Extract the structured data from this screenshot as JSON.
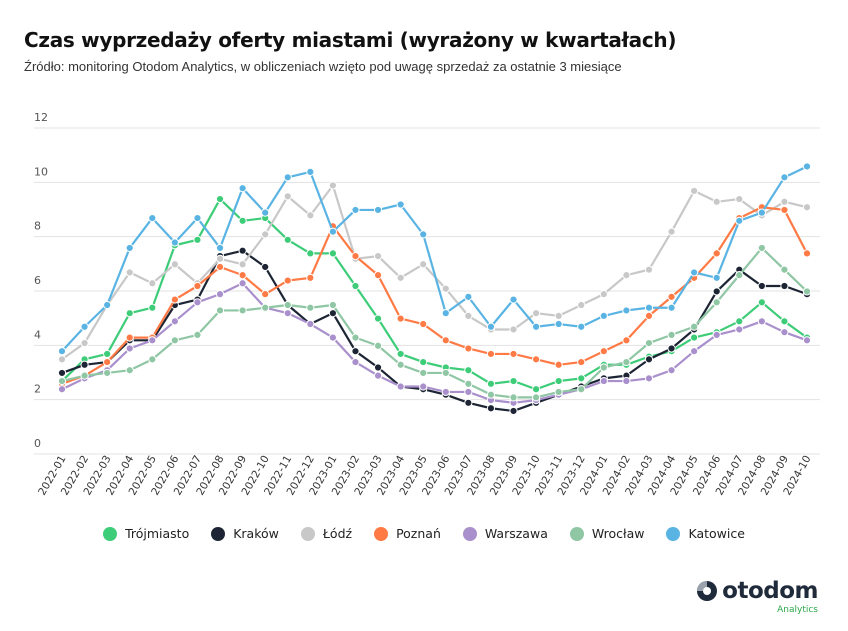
{
  "title": "Czas wyprzedaży oferty miastami (wyrażony w kwartałach)",
  "subtitle": "Źródło: monitoring Otodom Analytics, w obliczeniach wzięto pod uwagę sprzedaż za ostatnie 3 miesiące",
  "logo": {
    "name": "otodom",
    "sub": "Analytics"
  },
  "chart_data": {
    "type": "line",
    "title": "Czas wyprzedaży oferty miastami (wyrażony w kwartałach)",
    "ylim": [
      0,
      12
    ],
    "yticks": [
      0,
      2,
      4,
      6,
      8,
      10,
      12
    ],
    "grid": true,
    "legend": "bottom",
    "x": [
      "2022-01",
      "2022-02",
      "2022-03",
      "2022-04",
      "2022-05",
      "2022-06",
      "2022-07",
      "2022-08",
      "2022-09",
      "2022-10",
      "2022-11",
      "2022-12",
      "2023-01",
      "2023-02",
      "2023-03",
      "2023-04",
      "2023-05",
      "2023-06",
      "2023-07",
      "2023-08",
      "2023-09",
      "2023-10",
      "2023-11",
      "2023-12",
      "2024-01",
      "2024-02",
      "2024-03",
      "2024-04",
      "2024-05",
      "2024-06",
      "2024-07",
      "2024-08",
      "2024-09",
      "2024-10"
    ],
    "series": [
      {
        "name": "Trójmiasto",
        "color": "#3dcc78",
        "values": [
          2.5,
          3.3,
          3.5,
          5.0,
          5.2,
          7.5,
          7.7,
          9.2,
          8.4,
          8.5,
          7.7,
          7.2,
          7.2,
          6.0,
          4.8,
          3.5,
          3.2,
          3.0,
          2.9,
          2.4,
          2.5,
          2.2,
          2.5,
          2.6,
          3.1,
          3.1,
          3.4,
          3.6,
          4.1,
          4.3,
          4.7,
          5.4,
          4.7,
          4.1
        ]
      },
      {
        "name": "Kraków",
        "color": "#1d2535",
        "values": [
          2.8,
          3.1,
          3.2,
          4.0,
          4.0,
          5.3,
          5.5,
          7.1,
          7.3,
          6.7,
          5.3,
          4.6,
          5.0,
          3.6,
          3.0,
          2.3,
          2.2,
          2.0,
          1.7,
          1.5,
          1.4,
          1.7,
          2.0,
          2.3,
          2.6,
          2.7,
          3.3,
          3.7,
          4.4,
          5.8,
          6.6,
          6.0,
          6.0,
          5.7
        ]
      },
      {
        "name": "Łódź",
        "color": "#c8c8c8",
        "values": [
          3.3,
          3.9,
          5.3,
          6.5,
          6.1,
          6.8,
          6.1,
          7.0,
          6.8,
          7.9,
          9.3,
          8.6,
          9.7,
          7.0,
          7.1,
          6.3,
          6.8,
          5.9,
          4.9,
          4.4,
          4.4,
          5.0,
          4.9,
          5.3,
          5.7,
          6.4,
          6.6,
          8.0,
          9.5,
          9.1,
          9.2,
          8.6,
          9.1,
          8.9
        ]
      },
      {
        "name": "Poznań",
        "color": "#ff7a45",
        "values": [
          2.4,
          2.7,
          3.2,
          4.1,
          4.1,
          5.5,
          6.0,
          6.7,
          6.4,
          5.7,
          6.2,
          6.3,
          8.2,
          7.1,
          6.4,
          4.8,
          4.6,
          4.0,
          3.7,
          3.5,
          3.5,
          3.3,
          3.1,
          3.2,
          3.6,
          4.0,
          4.9,
          5.6,
          6.3,
          7.2,
          8.5,
          8.9,
          8.8,
          7.2
        ]
      },
      {
        "name": "Warszawa",
        "color": "#a98fcc",
        "values": [
          2.2,
          2.6,
          2.9,
          3.7,
          4.0,
          4.7,
          5.4,
          5.7,
          6.1,
          5.2,
          5.0,
          4.6,
          4.1,
          3.2,
          2.7,
          2.3,
          2.3,
          2.1,
          2.1,
          1.8,
          1.7,
          1.8,
          2.0,
          2.2,
          2.5,
          2.5,
          2.6,
          2.9,
          3.6,
          4.2,
          4.4,
          4.7,
          4.3,
          4.0
        ]
      },
      {
        "name": "Wrocław",
        "color": "#8fc6a4",
        "values": [
          2.5,
          2.7,
          2.8,
          2.9,
          3.3,
          4.0,
          4.2,
          5.1,
          5.1,
          5.2,
          5.3,
          5.2,
          5.3,
          4.1,
          3.8,
          3.1,
          2.8,
          2.8,
          2.4,
          2.0,
          1.9,
          1.9,
          2.1,
          2.2,
          3.0,
          3.2,
          3.9,
          4.2,
          4.5,
          5.4,
          6.4,
          7.4,
          6.6,
          5.8
        ]
      },
      {
        "name": "Katowice",
        "color": "#5ab4e3",
        "values": [
          3.6,
          4.5,
          5.3,
          7.4,
          8.5,
          7.6,
          8.5,
          7.4,
          9.6,
          8.7,
          10.0,
          10.2,
          8.0,
          8.8,
          8.8,
          9.0,
          7.9,
          5.0,
          5.6,
          4.5,
          5.5,
          4.5,
          4.6,
          4.5,
          4.9,
          5.1,
          5.2,
          5.2,
          6.5,
          6.3,
          8.4,
          8.7,
          10.0,
          10.4
        ]
      }
    ]
  }
}
